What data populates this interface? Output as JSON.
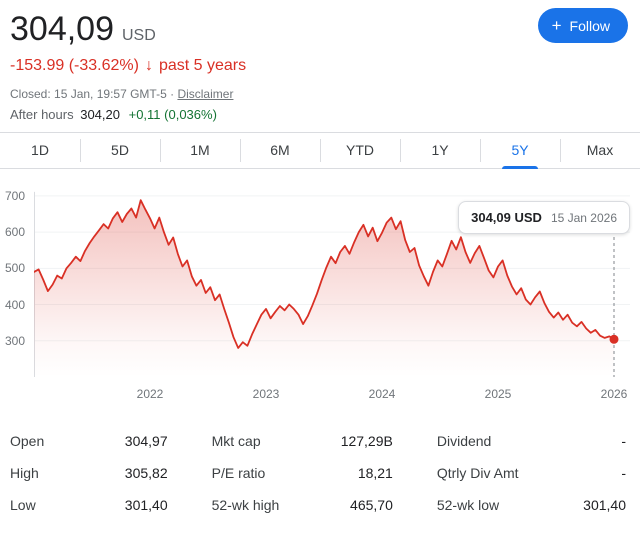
{
  "header": {
    "price": "304,09",
    "currency": "USD",
    "change": {
      "value": "-153.99 (-33.62%)",
      "arrow": "↓",
      "period": "past 5 years"
    },
    "closed_line": {
      "text": "Closed: 15 Jan, 19:57 GMT-5",
      "separator": "·",
      "disclaimer": "Disclaimer"
    },
    "after_hours": {
      "label": "After hours",
      "price": "304,20",
      "change": "+0,11 (0,036%)"
    },
    "follow": {
      "icon": "+",
      "label": "Follow"
    }
  },
  "tabs": {
    "active_index": 6,
    "items": [
      {
        "label": "1D"
      },
      {
        "label": "5D"
      },
      {
        "label": "1M"
      },
      {
        "label": "6M"
      },
      {
        "label": "YTD"
      },
      {
        "label": "1Y"
      },
      {
        "label": "5Y"
      },
      {
        "label": "Max"
      }
    ]
  },
  "tooltip": {
    "price": "304,09 USD",
    "date": "15 Jan 2026"
  },
  "chart_data": {
    "type": "area",
    "title": "5-year stock price chart",
    "line_color": "#d93025",
    "x_start": 2021.0,
    "x_end": 2026.0,
    "x_ticks": [
      "2022",
      "2023",
      "2024",
      "2025",
      "2026"
    ],
    "y_ticks": [
      300,
      400,
      500,
      600,
      700
    ],
    "y_range": [
      200,
      730
    ],
    "values": [
      490,
      497,
      468,
      437,
      455,
      480,
      472,
      500,
      515,
      532,
      520,
      548,
      570,
      588,
      605,
      622,
      610,
      638,
      655,
      628,
      650,
      665,
      640,
      688,
      662,
      638,
      610,
      640,
      600,
      565,
      585,
      540,
      505,
      522,
      478,
      452,
      468,
      432,
      448,
      412,
      428,
      388,
      350,
      310,
      280,
      296,
      286,
      318,
      345,
      372,
      388,
      362,
      380,
      396,
      384,
      400,
      388,
      372,
      346,
      368,
      398,
      430,
      468,
      502,
      532,
      514,
      545,
      562,
      540,
      572,
      600,
      620,
      588,
      612,
      575,
      598,
      626,
      640,
      608,
      630,
      578,
      545,
      556,
      508,
      478,
      452,
      490,
      522,
      505,
      540,
      576,
      552,
      586,
      545,
      515,
      542,
      562,
      528,
      494,
      475,
      505,
      522,
      480,
      450,
      428,
      445,
      414,
      400,
      420,
      436,
      404,
      380,
      364,
      378,
      358,
      372,
      350,
      340,
      352,
      334,
      322,
      330,
      314,
      308,
      312,
      304.09
    ],
    "last_point": {
      "value": "304,09",
      "date": "15 Jan 2026"
    }
  },
  "stats": {
    "columns": [
      {
        "rows": [
          {
            "label": "Open",
            "value": "304,97"
          },
          {
            "label": "High",
            "value": "305,82"
          },
          {
            "label": "Low",
            "value": "301,40"
          }
        ]
      },
      {
        "rows": [
          {
            "label": "Mkt cap",
            "value": "127,29B"
          },
          {
            "label": "P/E ratio",
            "value": "18,21"
          },
          {
            "label": "52-wk high",
            "value": "465,70"
          }
        ]
      },
      {
        "rows": [
          {
            "label": "Dividend",
            "value": "-"
          },
          {
            "label": "Qtrly Div Amt",
            "value": "-"
          },
          {
            "label": "52-wk low",
            "value": "301,40"
          }
        ]
      }
    ]
  },
  "colors": {
    "accent_blue": "#1a73e8",
    "down_red": "#d93025",
    "up_green": "#137333"
  }
}
